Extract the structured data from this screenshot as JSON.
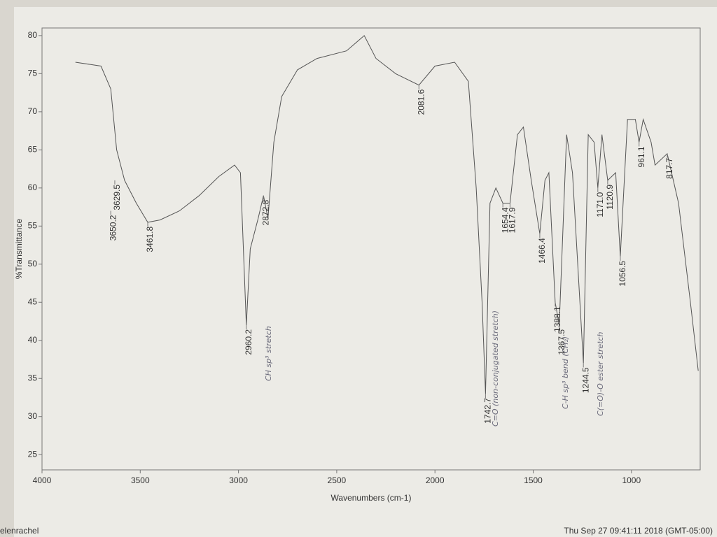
{
  "chart_data": {
    "type": "line",
    "x_label": "Wavenumbers (cm-1)",
    "y_label": "%Transmittance",
    "xlim": [
      4000,
      650
    ],
    "ylim": [
      23,
      81
    ],
    "xticks": [
      4000,
      3500,
      3000,
      2500,
      2000,
      1500,
      1000
    ],
    "yticks": [
      25,
      30,
      35,
      40,
      45,
      50,
      55,
      60,
      65,
      70,
      75,
      80
    ],
    "series": [
      {
        "color": "#555555",
        "x": [
          3830,
          3700,
          3650,
          3620,
          3580,
          3520,
          3461.8,
          3400,
          3300,
          3200,
          3100,
          3020,
          2990,
          2960.2,
          2940,
          2900,
          2872.8,
          2850,
          2820,
          2780,
          2700,
          2600,
          2450,
          2360,
          2300,
          2200,
          2081.6,
          2000,
          1900,
          1830,
          1790,
          1760,
          1742.7,
          1720,
          1690,
          1654.4,
          1617.9,
          1580,
          1550,
          1510,
          1466.4,
          1440,
          1420,
          1388.1,
          1367.5,
          1330,
          1300,
          1244.5,
          1220,
          1190,
          1171.0,
          1150,
          1120.9,
          1080,
          1056.5,
          1020,
          980,
          961.1,
          940,
          900,
          880,
          817.7,
          760,
          700,
          660
        ],
        "values": [
          76.5,
          76,
          73,
          65,
          61,
          58,
          55.5,
          55.8,
          57,
          59,
          61.5,
          63,
          62,
          42,
          52,
          56,
          59,
          56,
          66,
          72,
          75.5,
          77,
          78,
          80,
          77,
          75,
          73.5,
          76,
          76.5,
          74,
          60,
          45,
          33,
          58,
          60,
          58,
          58,
          67,
          68,
          61,
          54,
          61,
          62,
          45,
          42,
          67,
          62,
          37,
          67,
          66,
          60,
          67,
          61,
          62,
          51,
          69,
          69,
          66,
          69,
          66,
          63,
          64.5,
          58,
          45,
          36
        ]
      }
    ],
    "peaks": [
      {
        "x": 3650.2,
        "y": 57
      },
      {
        "x": 3629.5,
        "y": 61
      },
      {
        "x": 3461.8,
        "y": 55.5
      },
      {
        "x": 2960.2,
        "y": 42
      },
      {
        "x": 2872.8,
        "y": 59
      },
      {
        "x": 2081.6,
        "y": 73.5
      },
      {
        "x": 1742.7,
        "y": 33
      },
      {
        "x": 1654.4,
        "y": 58
      },
      {
        "x": 1617.9,
        "y": 58
      },
      {
        "x": 1466.4,
        "y": 54
      },
      {
        "x": 1388.1,
        "y": 45
      },
      {
        "x": 1367.5,
        "y": 42
      },
      {
        "x": 1244.5,
        "y": 37
      },
      {
        "x": {
          "value": 1171,
          "label": "1171.0"
        },
        "y": 60
      },
      {
        "x": 1120.9,
        "y": 61
      },
      {
        "x": 1056.5,
        "y": 51
      },
      {
        "x": 961.1,
        "y": 66
      },
      {
        "x": 817.7,
        "y": 64.5
      }
    ],
    "annotations": [
      "CH sp³ stretch",
      "C=O (non-conjugated stretch)",
      "C-H sp³ bend (CH₂)",
      "C(=O)-O ester stretch"
    ],
    "footer_left": "elenrachel",
    "footer_right": "Thu Sep 27 09:41:11 2018 (GMT-05:00)"
  }
}
